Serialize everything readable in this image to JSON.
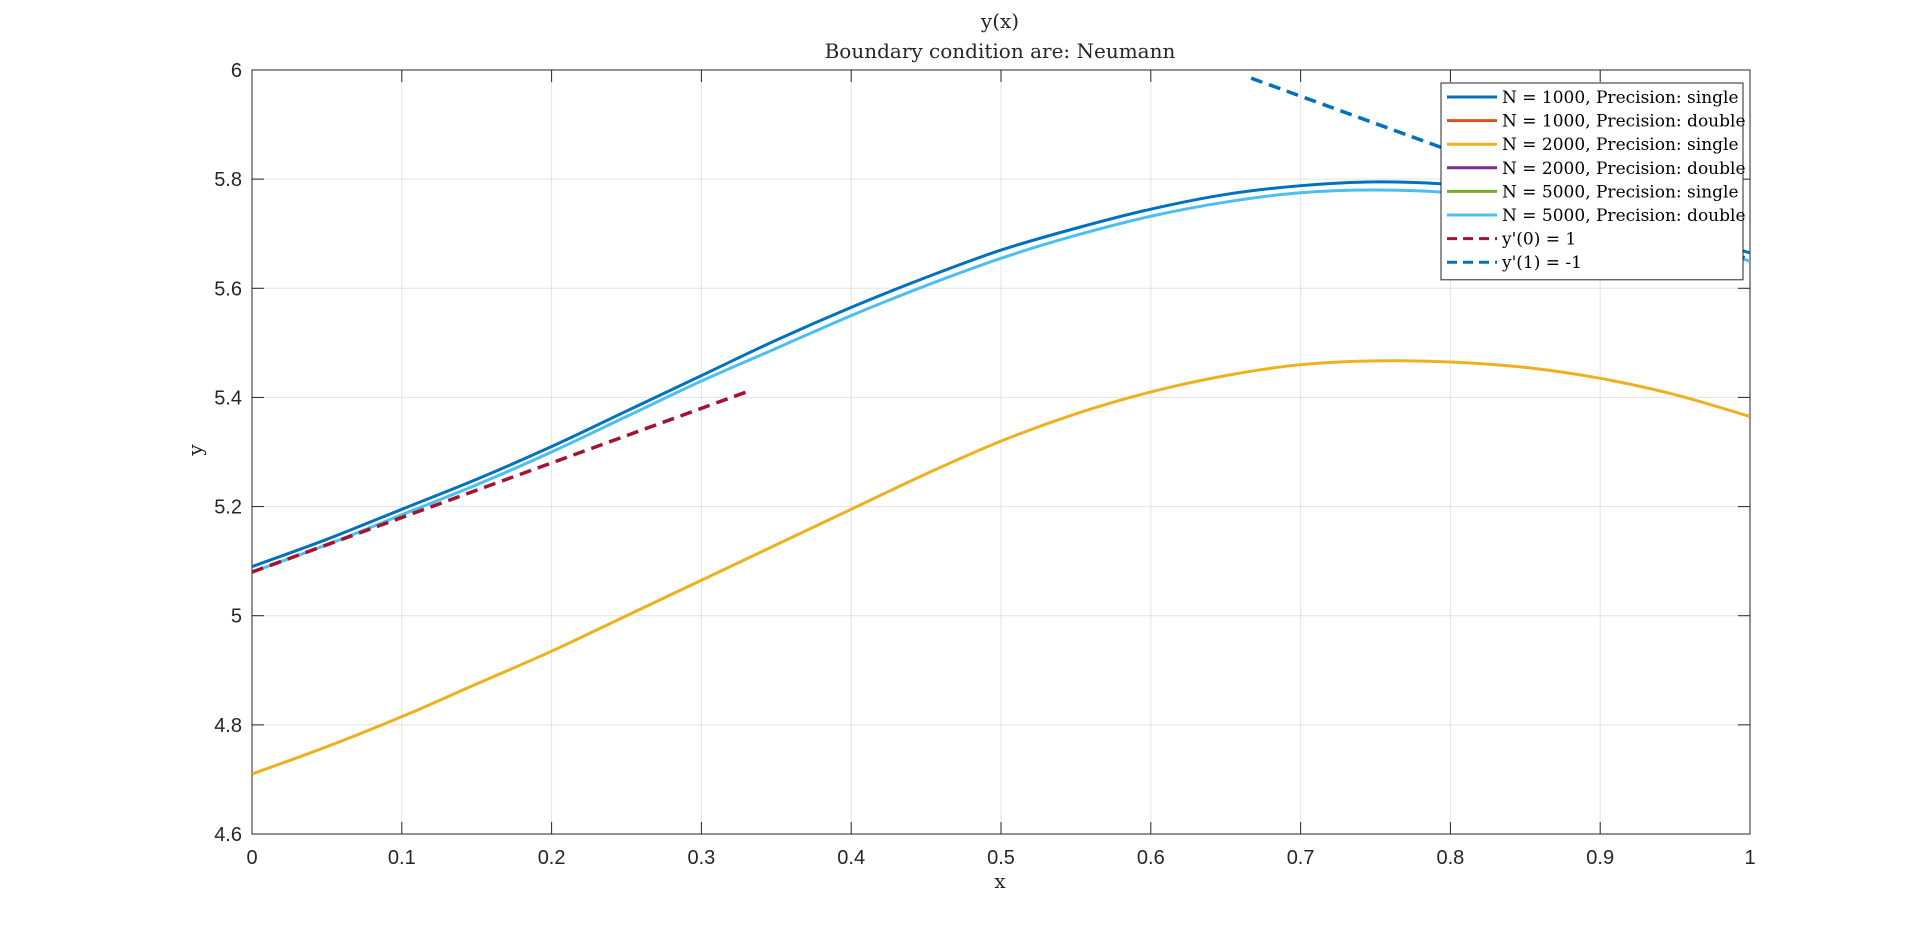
{
  "chart_data": {
    "type": "line",
    "title": "y(x)",
    "subtitle": "Boundary condition are: Neumann",
    "xlabel": "x",
    "ylabel": "y",
    "xlim": [
      0,
      1
    ],
    "ylim": [
      4.6,
      6
    ],
    "xticks": [
      "0",
      "0.1",
      "0.2",
      "0.3",
      "0.4",
      "0.5",
      "0.6",
      "0.7",
      "0.8",
      "0.9",
      "1"
    ],
    "yticks": [
      "4.6",
      "4.8",
      "5",
      "5.2",
      "5.4",
      "5.6",
      "5.8",
      "6"
    ],
    "grid": true,
    "legend_position": "top-right",
    "series": [
      {
        "name": "N = 1000, Precision: single",
        "color": "#0072BD",
        "style": "solid",
        "x": [
          0,
          0.05,
          0.1,
          0.15,
          0.2,
          0.25,
          0.3,
          0.35,
          0.4,
          0.45,
          0.5,
          0.55,
          0.6,
          0.65,
          0.7,
          0.75,
          0.8,
          0.85,
          0.9,
          0.95,
          1
        ],
        "y": [
          5.09,
          5.14,
          5.195,
          5.25,
          5.31,
          5.375,
          5.44,
          5.505,
          5.565,
          5.62,
          5.67,
          5.71,
          5.745,
          5.772,
          5.788,
          5.795,
          5.79,
          5.77,
          5.74,
          5.705,
          5.665
        ]
      },
      {
        "name": "N = 1000, Precision: double",
        "color": "#D95319",
        "style": "solid",
        "x": [],
        "y": []
      },
      {
        "name": "N = 2000, Precision: single",
        "color": "#EDB120",
        "style": "solid",
        "x": [
          0,
          0.05,
          0.1,
          0.15,
          0.2,
          0.25,
          0.3,
          0.35,
          0.4,
          0.45,
          0.5,
          0.55,
          0.6,
          0.65,
          0.7,
          0.75,
          0.8,
          0.85,
          0.9,
          0.95,
          1
        ],
        "y": [
          4.71,
          4.76,
          4.815,
          4.875,
          4.935,
          5.0,
          5.065,
          5.13,
          5.195,
          5.26,
          5.32,
          5.37,
          5.41,
          5.44,
          5.46,
          5.467,
          5.465,
          5.455,
          5.435,
          5.405,
          5.365
        ]
      },
      {
        "name": "N = 2000, Precision: double",
        "color": "#7E2F8E",
        "style": "solid",
        "x": [],
        "y": []
      },
      {
        "name": "N = 5000, Precision: single",
        "color": "#77AC30",
        "style": "solid",
        "x": [],
        "y": []
      },
      {
        "name": "N = 5000, Precision: double",
        "color": "#4DBEEE",
        "style": "solid",
        "x": [
          0,
          0.05,
          0.1,
          0.15,
          0.2,
          0.25,
          0.3,
          0.35,
          0.4,
          0.45,
          0.5,
          0.55,
          0.6,
          0.65,
          0.7,
          0.75,
          0.8,
          0.85,
          0.9,
          0.95,
          1
        ],
        "y": [
          5.08,
          5.13,
          5.185,
          5.24,
          5.3,
          5.365,
          5.43,
          5.49,
          5.55,
          5.605,
          5.655,
          5.697,
          5.732,
          5.758,
          5.775,
          5.78,
          5.775,
          5.757,
          5.727,
          5.69,
          5.65
        ]
      },
      {
        "name": "y'(0) = 1",
        "color": "#A2142F",
        "style": "dashed",
        "x": [
          0,
          0.333
        ],
        "y": [
          5.08,
          5.413
        ]
      },
      {
        "name": "y'(1) = -1",
        "color": "#0072BD",
        "style": "dashed",
        "x": [
          0.667,
          1
        ],
        "y": [
          5.985,
          5.652
        ]
      }
    ]
  }
}
